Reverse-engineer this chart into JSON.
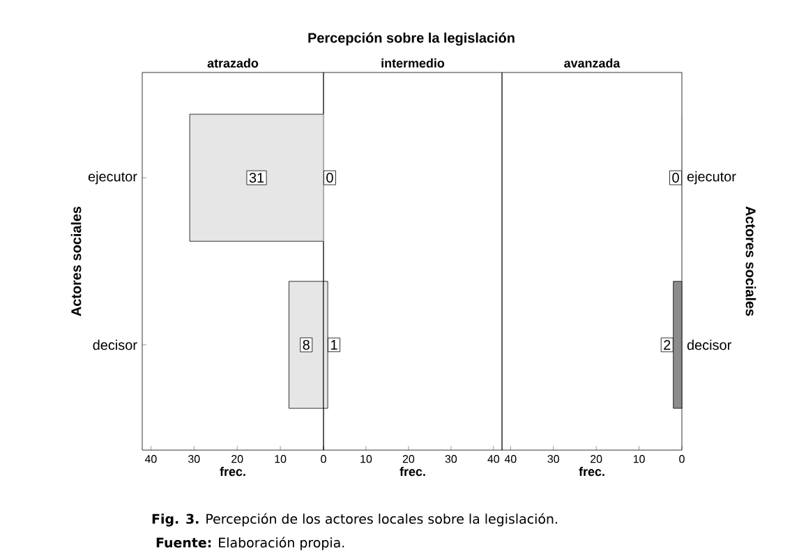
{
  "chart_data": [
    {
      "type": "bar",
      "orientation": "horizontal",
      "subtitle": "atrazado",
      "categories": [
        "ejecutor",
        "decisor"
      ],
      "values": [
        31,
        8
      ],
      "color": "#e6e6e6",
      "xlim": [
        42,
        0
      ],
      "xticks": [
        40,
        30,
        20,
        10,
        0
      ],
      "xlabel": "frec.",
      "ylabel": "Actores sociales",
      "data_labels": true,
      "annotations": [
        "**Fig. 3.** Percepción de los actores locales sobre la legislación.",
        "**Fuente:** Elaboración propia."
      ]
    },
    {
      "type": "bar",
      "orientation": "horizontal",
      "title": "Percepción sobre la legislación",
      "subtitle": "intermedio",
      "categories": [
        null,
        null
      ],
      "values": [
        0,
        1
      ],
      "color": "#e6e6e6",
      "xlim": [
        0,
        42
      ],
      "xticks": [
        {
          "value": 0,
          "label": null
        },
        10,
        20,
        30,
        40
      ],
      "xlabel": "frec.",
      "data_labels": true,
      "tick_labels": "x"
    },
    {
      "type": "bar",
      "orientation": "horizontal",
      "subtitle": "avanzada",
      "categories": [
        "ejecutor",
        "decisor"
      ],
      "values": [
        0,
        2
      ],
      "color": "#8c8c8c",
      "xlim": [
        42,
        0
      ],
      "xticks": [
        40,
        30,
        20,
        10,
        0
      ],
      "xlabel": "frec.",
      "y2label": "Actores sociales",
      "data_labels": true
    }
  ]
}
